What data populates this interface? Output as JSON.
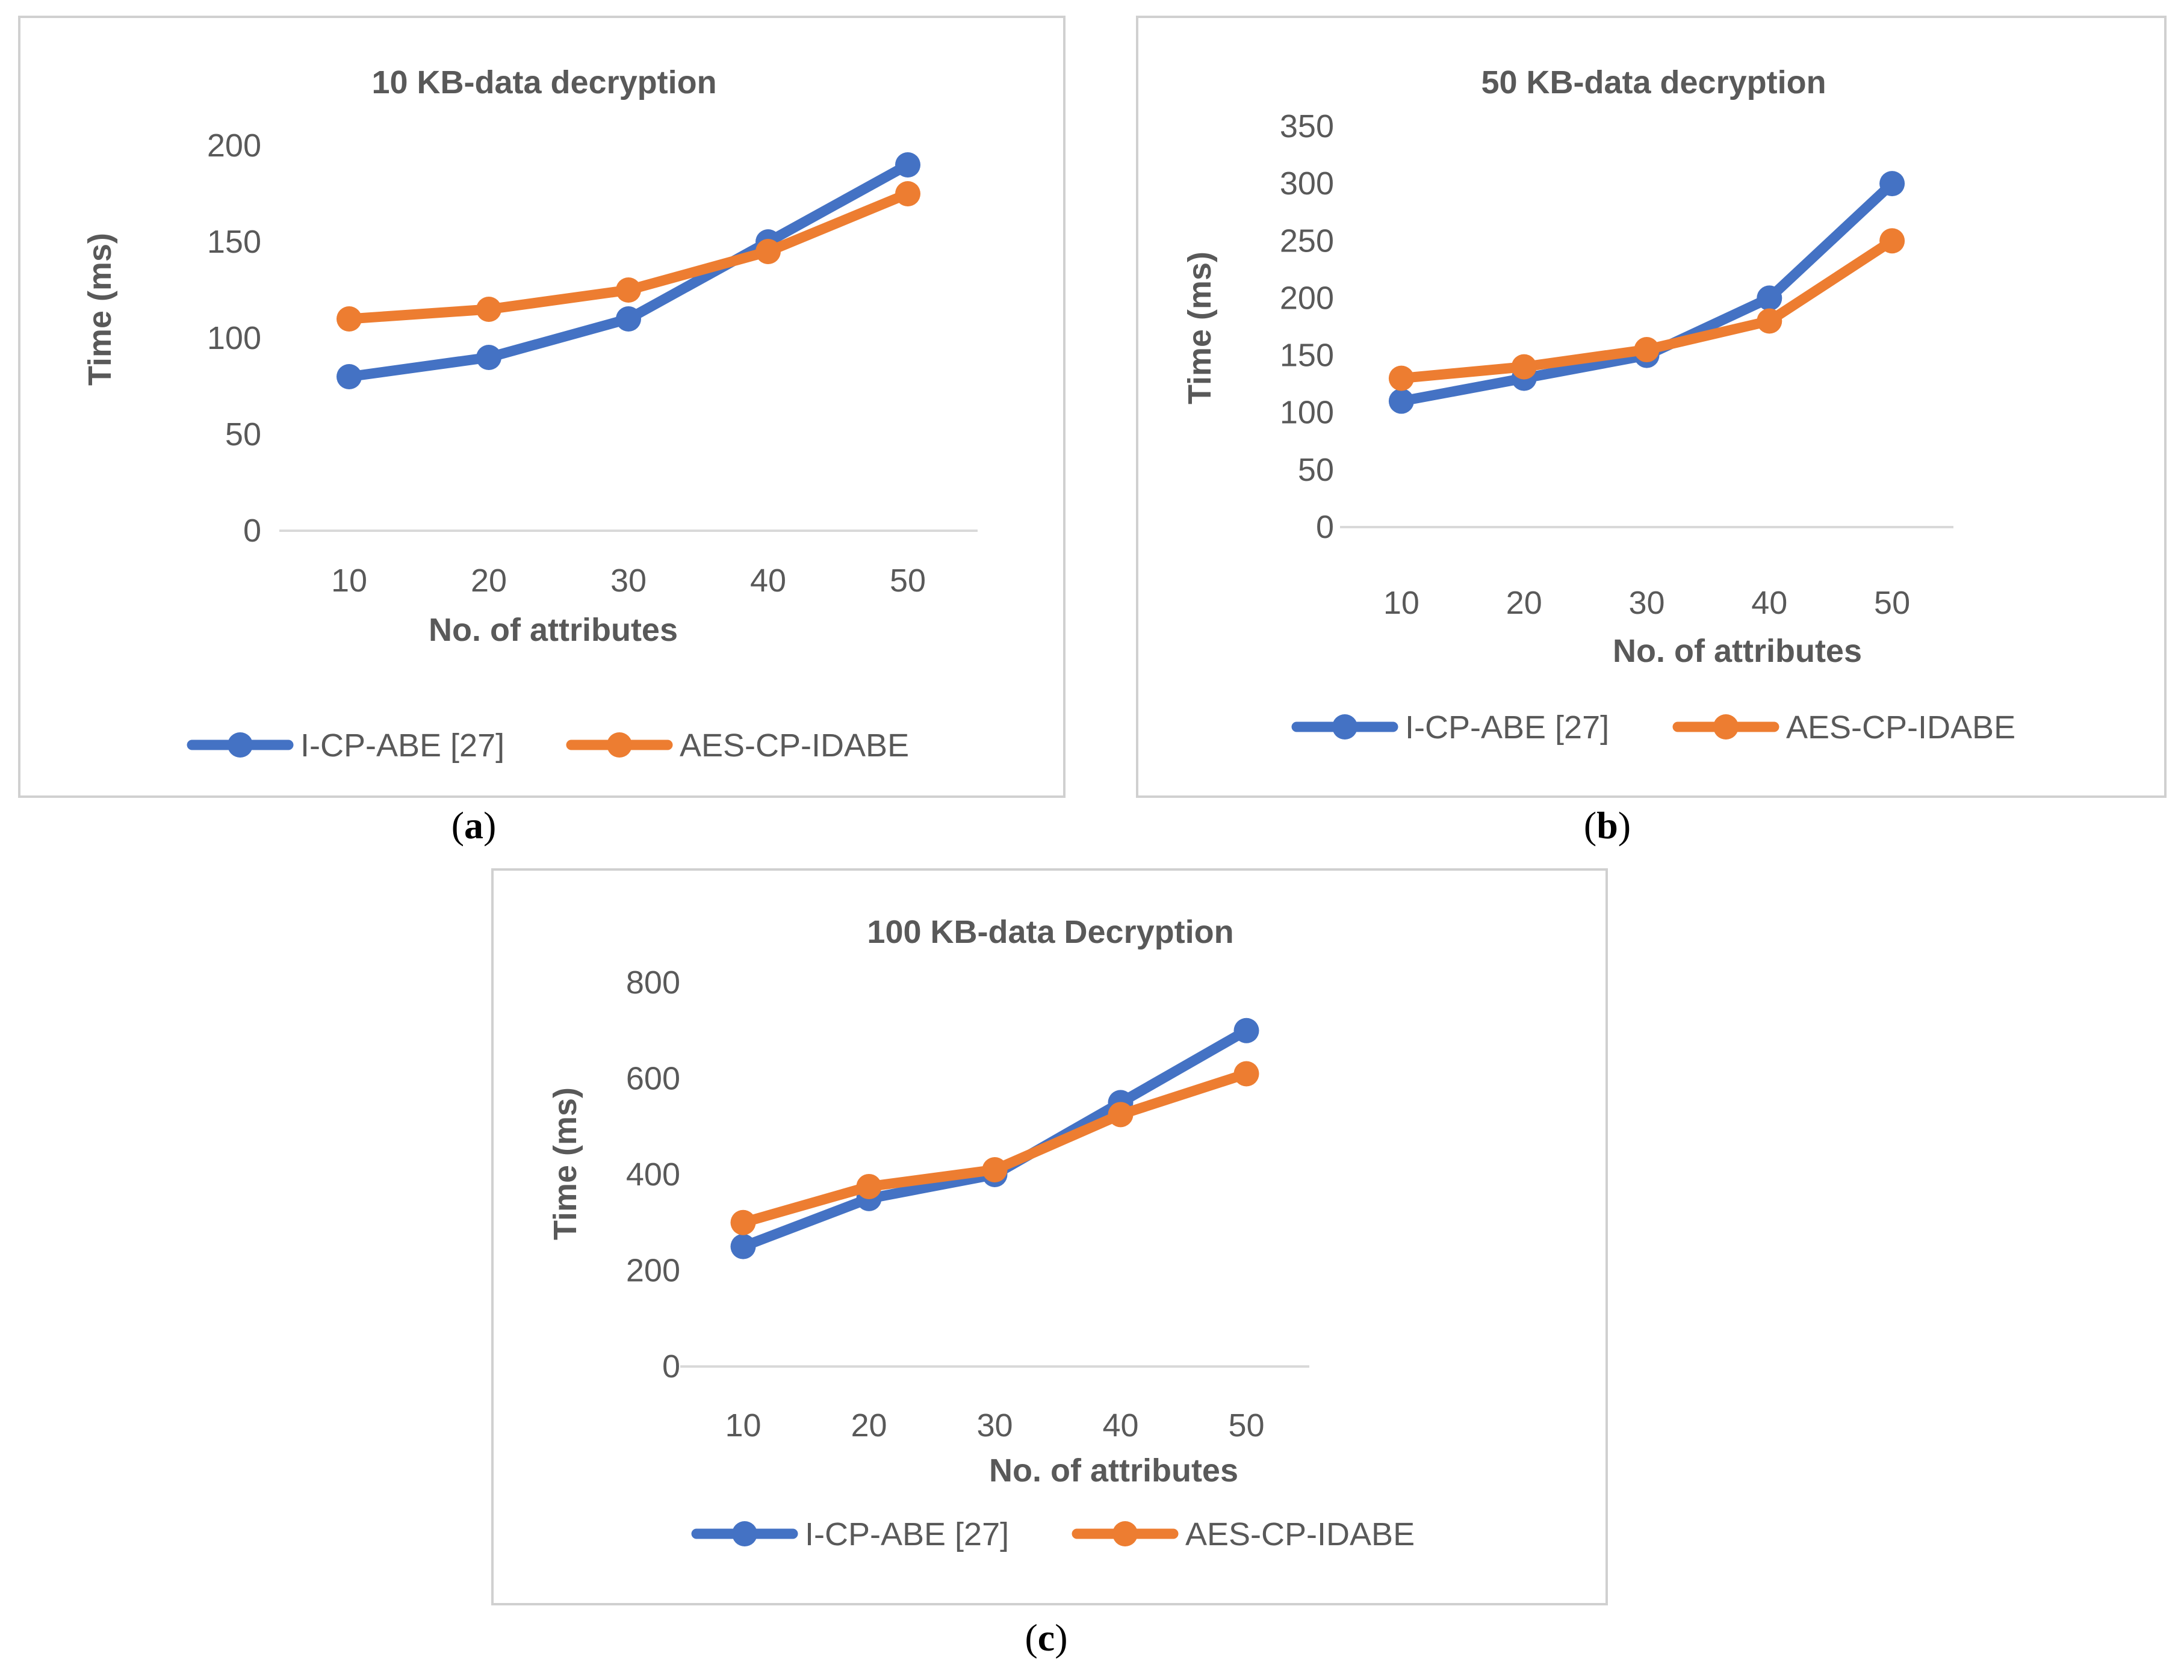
{
  "colors": {
    "series1": "#4472C4",
    "series2": "#ED7D31",
    "axis": "#d9d9d9",
    "text": "#595959"
  },
  "chart_data": [
    {
      "id": "a",
      "type": "line",
      "title": "10 KB-data decryption",
      "xlabel": "No. of attributes",
      "ylabel": "Time (ms)",
      "categories": [
        "10",
        "20",
        "30",
        "40",
        "50"
      ],
      "ylim": [
        0,
        200
      ],
      "yticks": [
        0,
        50,
        100,
        150,
        200
      ],
      "grid": false,
      "legend": "bottom",
      "series": [
        {
          "name": "I-CP-ABE [27]",
          "values": [
            80,
            90,
            110,
            150,
            190
          ]
        },
        {
          "name": "AES-CP-IDABE",
          "values": [
            110,
            115,
            125,
            145,
            175
          ]
        }
      ]
    },
    {
      "id": "b",
      "type": "line",
      "title": "50 KB-data decryption",
      "xlabel": "No. of attributes",
      "ylabel": "Time (ms)",
      "categories": [
        "10",
        "20",
        "30",
        "40",
        "50"
      ],
      "ylim": [
        0,
        350
      ],
      "yticks": [
        0,
        50,
        100,
        150,
        200,
        250,
        300,
        350
      ],
      "grid": false,
      "legend": "bottom",
      "series": [
        {
          "name": "I-CP-ABE [27]",
          "values": [
            110,
            130,
            150,
            200,
            300
          ]
        },
        {
          "name": "AES-CP-IDABE",
          "values": [
            130,
            140,
            155,
            180,
            250
          ]
        }
      ]
    },
    {
      "id": "c",
      "type": "line",
      "title": "100 KB-data Decryption",
      "xlabel": "No. of attributes",
      "ylabel": "Time (ms)",
      "categories": [
        "10",
        "20",
        "30",
        "40",
        "50"
      ],
      "ylim": [
        0,
        800
      ],
      "yticks": [
        0,
        200,
        400,
        600,
        800
      ],
      "grid": false,
      "legend": "bottom",
      "series": [
        {
          "name": "I-CP-ABE [27]",
          "values": [
            250,
            350,
            400,
            550,
            700
          ]
        },
        {
          "name": "AES-CP-IDABE",
          "values": [
            300,
            375,
            410,
            525,
            610
          ]
        }
      ]
    }
  ],
  "captions": {
    "a": "a",
    "b": "b",
    "c": "c"
  }
}
